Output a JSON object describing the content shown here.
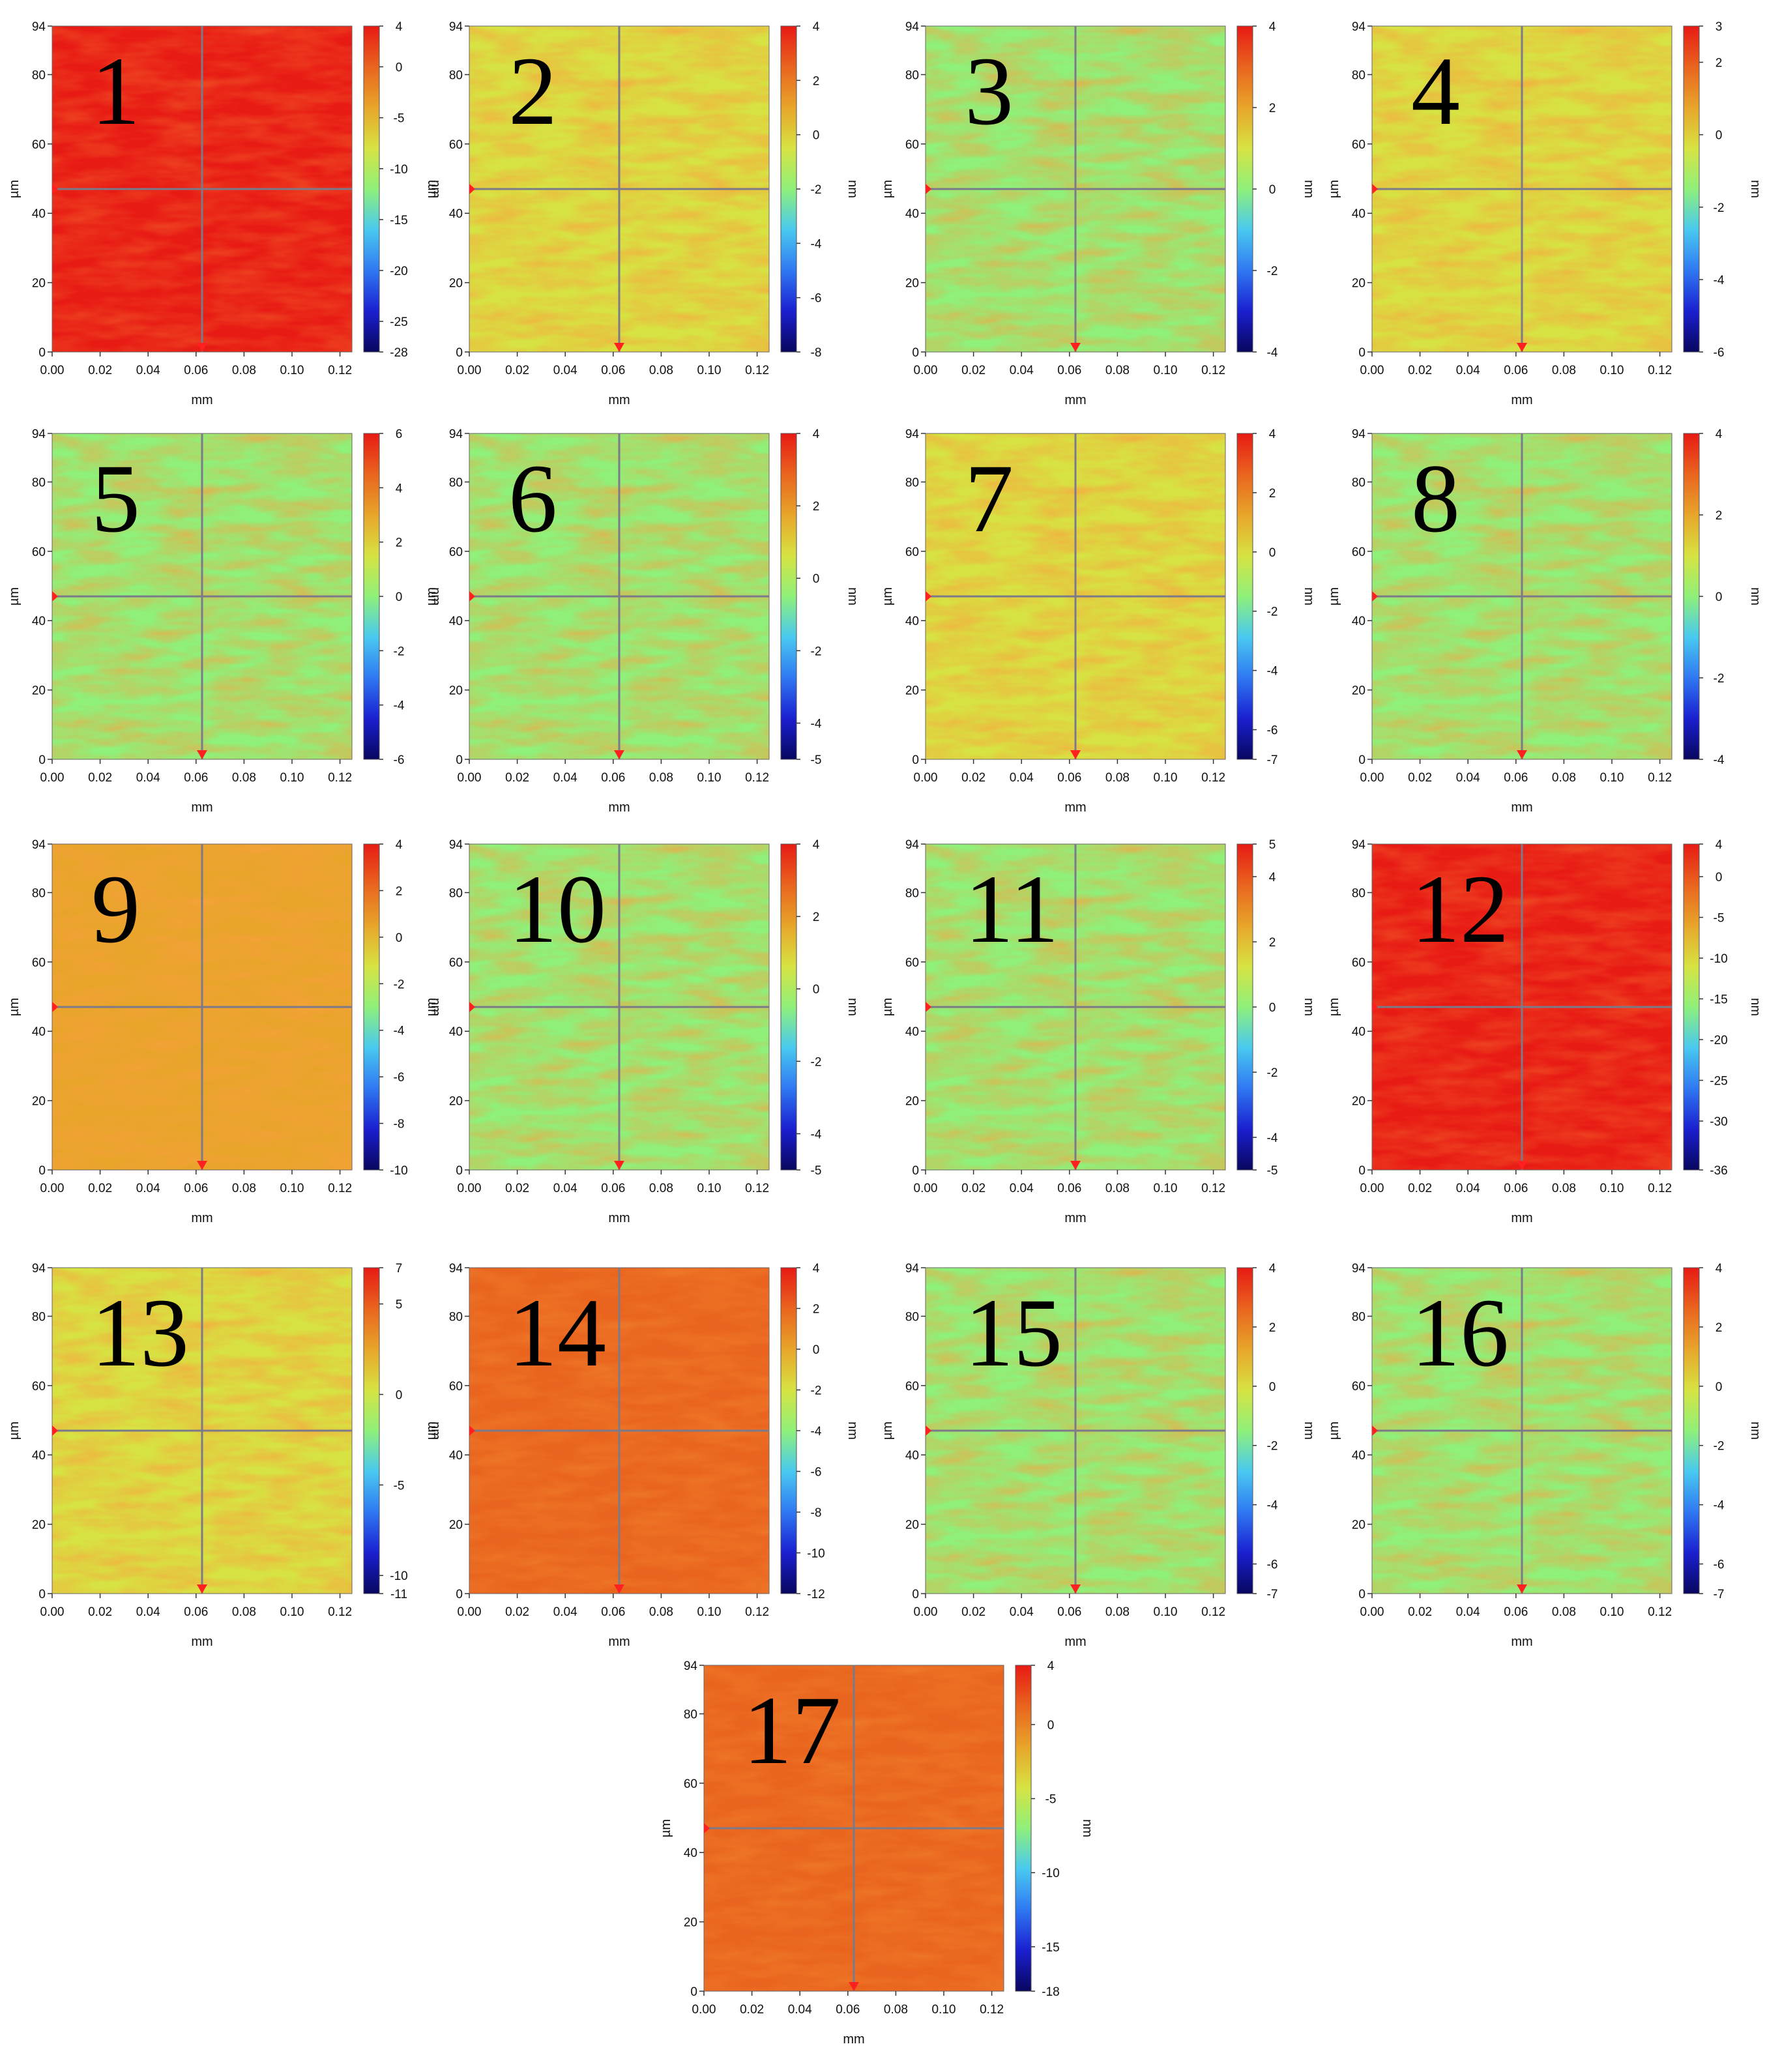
{
  "x_ticks": [
    "0.00",
    "0.02",
    "0.04",
    "0.06",
    "0.08",
    "0.10",
    "0.12"
  ],
  "y_ticks": [
    "0",
    "20",
    "40",
    "60",
    "80",
    "94"
  ],
  "x_axis_label": "mm",
  "y_axis_label": "µm",
  "colorbar_unit_label": "nm",
  "colormap": [
    "#08065e",
    "#1a1fd0",
    "#2f78f2",
    "#49c9f0",
    "#8ff07a",
    "#d7e342",
    "#e8a52a",
    "#e9641e",
    "#e81a14"
  ],
  "chart_data": [
    {
      "type": "heatmap",
      "panel_label": "1",
      "xlabel": "mm",
      "ylabel": "µm",
      "xlim": [
        0,
        0.125
      ],
      "ylim": [
        0,
        94
      ],
      "colorbar_label": "nm",
      "colorbar_range": [
        -28,
        4
      ],
      "colorbar_ticks": [
        "4",
        "0",
        "-5",
        "-10",
        "-15",
        "-20",
        "-25",
        "-28"
      ]
    },
    {
      "type": "heatmap",
      "panel_label": "2",
      "xlabel": "mm",
      "ylabel": "µm",
      "xlim": [
        0,
        0.125
      ],
      "ylim": [
        0,
        94
      ],
      "colorbar_label": "nm",
      "colorbar_range": [
        -8,
        4
      ],
      "colorbar_ticks": [
        "4",
        "2",
        "0",
        "-2",
        "-4",
        "-6",
        "-8"
      ]
    },
    {
      "type": "heatmap",
      "panel_label": "3",
      "xlabel": "mm",
      "ylabel": "µm",
      "xlim": [
        0,
        0.125
      ],
      "ylim": [
        0,
        94
      ],
      "colorbar_label": "nm",
      "colorbar_range": [
        -4,
        4
      ],
      "colorbar_ticks": [
        "4",
        "2",
        "0",
        "-2",
        "-4"
      ]
    },
    {
      "type": "heatmap",
      "panel_label": "4",
      "xlabel": "mm",
      "ylabel": "µm",
      "xlim": [
        0,
        0.125
      ],
      "ylim": [
        0,
        94
      ],
      "colorbar_label": "nm",
      "colorbar_range": [
        -6,
        3
      ],
      "colorbar_ticks": [
        "3",
        "2",
        "0",
        "-2",
        "-4",
        "-6"
      ]
    },
    {
      "type": "heatmap",
      "panel_label": "5",
      "xlabel": "mm",
      "ylabel": "µm",
      "xlim": [
        0,
        0.125
      ],
      "ylim": [
        0,
        94
      ],
      "colorbar_label": "nm",
      "colorbar_range": [
        -6,
        6
      ],
      "colorbar_ticks": [
        "6",
        "4",
        "2",
        "0",
        "-2",
        "-4",
        "-6"
      ]
    },
    {
      "type": "heatmap",
      "panel_label": "6",
      "xlabel": "mm",
      "ylabel": "µm",
      "xlim": [
        0,
        0.125
      ],
      "ylim": [
        0,
        94
      ],
      "colorbar_label": "nm",
      "colorbar_range": [
        -5,
        4
      ],
      "colorbar_ticks": [
        "4",
        "2",
        "0",
        "-2",
        "-4",
        "-5"
      ]
    },
    {
      "type": "heatmap",
      "panel_label": "7",
      "xlabel": "mm",
      "ylabel": "µm",
      "xlim": [
        0,
        0.125
      ],
      "ylim": [
        0,
        94
      ],
      "colorbar_label": "nm",
      "colorbar_range": [
        -7,
        4
      ],
      "colorbar_ticks": [
        "4",
        "2",
        "0",
        "-2",
        "-4",
        "-6",
        "-7"
      ]
    },
    {
      "type": "heatmap",
      "panel_label": "8",
      "xlabel": "mm",
      "ylabel": "µm",
      "xlim": [
        0,
        0.125
      ],
      "ylim": [
        0,
        94
      ],
      "colorbar_label": "nm",
      "colorbar_range": [
        -4,
        4
      ],
      "colorbar_ticks": [
        "4",
        "2",
        "0",
        "-2",
        "-4"
      ]
    },
    {
      "type": "heatmap",
      "panel_label": "9",
      "xlabel": "mm",
      "ylabel": "µm",
      "xlim": [
        0,
        0.125
      ],
      "ylim": [
        0,
        94
      ],
      "colorbar_label": "nm",
      "colorbar_range": [
        -10,
        4
      ],
      "colorbar_ticks": [
        "4",
        "2",
        "0",
        "-2",
        "-4",
        "-6",
        "-8",
        "-10"
      ]
    },
    {
      "type": "heatmap",
      "panel_label": "10",
      "xlabel": "mm",
      "ylabel": "µm",
      "xlim": [
        0,
        0.125
      ],
      "ylim": [
        0,
        94
      ],
      "colorbar_label": "nm",
      "colorbar_range": [
        -5,
        4
      ],
      "colorbar_ticks": [
        "4",
        "2",
        "0",
        "-2",
        "-4",
        "-5"
      ]
    },
    {
      "type": "heatmap",
      "panel_label": "11",
      "xlabel": "mm",
      "ylabel": "µm",
      "xlim": [
        0,
        0.125
      ],
      "ylim": [
        0,
        94
      ],
      "colorbar_label": "nm",
      "colorbar_range": [
        -5,
        5
      ],
      "colorbar_ticks": [
        "5",
        "4",
        "2",
        "0",
        "-2",
        "-4",
        "-5"
      ]
    },
    {
      "type": "heatmap",
      "panel_label": "12",
      "xlabel": "mm",
      "ylabel": "µm",
      "xlim": [
        0,
        0.125
      ],
      "ylim": [
        0,
        94
      ],
      "colorbar_label": "nm",
      "colorbar_range": [
        -36,
        4
      ],
      "colorbar_ticks": [
        "4",
        "0",
        "-5",
        "-10",
        "-15",
        "-20",
        "-25",
        "-30",
        "-36"
      ]
    },
    {
      "type": "heatmap",
      "panel_label": "13",
      "xlabel": "mm",
      "ylabel": "µm",
      "xlim": [
        0,
        0.125
      ],
      "ylim": [
        0,
        94
      ],
      "colorbar_label": "nm",
      "colorbar_range": [
        -11,
        7
      ],
      "colorbar_ticks": [
        "7",
        "5",
        "0",
        "-5",
        "-10",
        "-11"
      ]
    },
    {
      "type": "heatmap",
      "panel_label": "14",
      "xlabel": "mm",
      "ylabel": "µm",
      "xlim": [
        0,
        0.125
      ],
      "ylim": [
        0,
        94
      ],
      "colorbar_label": "nm",
      "colorbar_range": [
        -12,
        4
      ],
      "colorbar_ticks": [
        "4",
        "2",
        "0",
        "-2",
        "-4",
        "-6",
        "-8",
        "-10",
        "-12"
      ]
    },
    {
      "type": "heatmap",
      "panel_label": "15",
      "xlabel": "mm",
      "ylabel": "µm",
      "xlim": [
        0,
        0.125
      ],
      "ylim": [
        0,
        94
      ],
      "colorbar_label": "nm",
      "colorbar_range": [
        -7,
        4
      ],
      "colorbar_ticks": [
        "4",
        "2",
        "0",
        "-2",
        "-4",
        "-6",
        "-7"
      ]
    },
    {
      "type": "heatmap",
      "panel_label": "16",
      "xlabel": "mm",
      "ylabel": "µm",
      "xlim": [
        0,
        0.125
      ],
      "ylim": [
        0,
        94
      ],
      "colorbar_label": "nm",
      "colorbar_range": [
        -7,
        4
      ],
      "colorbar_ticks": [
        "4",
        "2",
        "0",
        "-2",
        "-4",
        "-6",
        "-7"
      ]
    },
    {
      "type": "heatmap",
      "panel_label": "17",
      "xlabel": "mm",
      "ylabel": "µm",
      "xlim": [
        0,
        0.125
      ],
      "ylim": [
        0,
        94
      ],
      "colorbar_label": "nm",
      "colorbar_range": [
        -18,
        4
      ],
      "colorbar_ticks": [
        "4",
        "0",
        "-5",
        "-10",
        "-15",
        "-18"
      ]
    }
  ]
}
